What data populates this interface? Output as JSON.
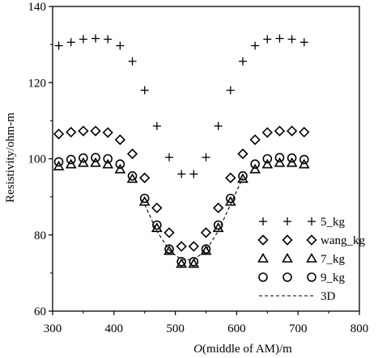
{
  "chart_data": {
    "type": "scatter",
    "xlabel_prefix": "O",
    "xlabel": "(middle of AM)/m",
    "ylabel": "Resistivity/ohm-m",
    "xlim": [
      300,
      800
    ],
    "ylim": [
      60,
      140
    ],
    "xticks": [
      300,
      400,
      500,
      600,
      700,
      800
    ],
    "yticks": [
      60,
      80,
      100,
      120,
      140
    ],
    "grid": false,
    "legend_position": "bottom-right",
    "series": [
      {
        "name": "5_kg",
        "marker": "plus",
        "x": [
          310,
          330,
          350,
          370,
          390,
          410,
          430,
          450,
          470,
          490,
          510,
          530,
          550,
          570,
          590,
          610,
          630,
          650,
          670,
          690,
          710
        ],
        "y": [
          129.7,
          130.6,
          131.4,
          131.6,
          131.4,
          129.7,
          125.6,
          118.0,
          108.6,
          100.4,
          96.0,
          96.0,
          100.4,
          108.6,
          118.0,
          125.6,
          129.7,
          131.4,
          131.6,
          131.4,
          130.6
        ]
      },
      {
        "name": "wang_kg",
        "marker": "diamond",
        "x": [
          310,
          330,
          350,
          370,
          390,
          410,
          430,
          450,
          470,
          490,
          510,
          530,
          550,
          570,
          590,
          610,
          630,
          650,
          670,
          690,
          710
        ],
        "y": [
          106.5,
          107.0,
          107.3,
          107.3,
          106.9,
          105.0,
          101.3,
          95.0,
          87.1,
          80.6,
          77.0,
          77.0,
          80.6,
          87.1,
          95.0,
          101.3,
          105.0,
          106.9,
          107.3,
          107.3,
          107.0
        ]
      },
      {
        "name": "7_kg",
        "marker": "triangle",
        "x": [
          310,
          330,
          350,
          370,
          390,
          410,
          430,
          450,
          470,
          490,
          510,
          530,
          550,
          570,
          590,
          610,
          630,
          650,
          670,
          690,
          710
        ],
        "y": [
          98.0,
          98.5,
          98.9,
          98.9,
          98.5,
          97.2,
          94.7,
          88.7,
          81.8,
          75.8,
          72.4,
          72.4,
          75.8,
          81.8,
          88.7,
          94.7,
          97.2,
          98.5,
          98.9,
          98.9,
          98.5
        ]
      },
      {
        "name": "9_kg",
        "marker": "circle",
        "x": [
          310,
          330,
          350,
          370,
          390,
          410,
          430,
          450,
          470,
          490,
          510,
          530,
          550,
          570,
          590,
          610,
          630,
          650,
          670,
          690,
          710
        ],
        "y": [
          99.2,
          99.8,
          100.2,
          100.3,
          100.0,
          98.6,
          95.5,
          89.6,
          82.6,
          76.3,
          73.0,
          73.0,
          76.3,
          82.6,
          89.6,
          95.5,
          98.6,
          100.0,
          100.3,
          100.2,
          99.8
        ]
      },
      {
        "name": "3D",
        "marker": "dashed-line",
        "x": [
          450,
          470,
          490,
          510,
          530,
          550,
          570,
          590,
          610
        ],
        "y": [
          88.0,
          81.0,
          76.0,
          73.5,
          73.5,
          76.0,
          81.0,
          88.0,
          95.0
        ]
      }
    ]
  }
}
